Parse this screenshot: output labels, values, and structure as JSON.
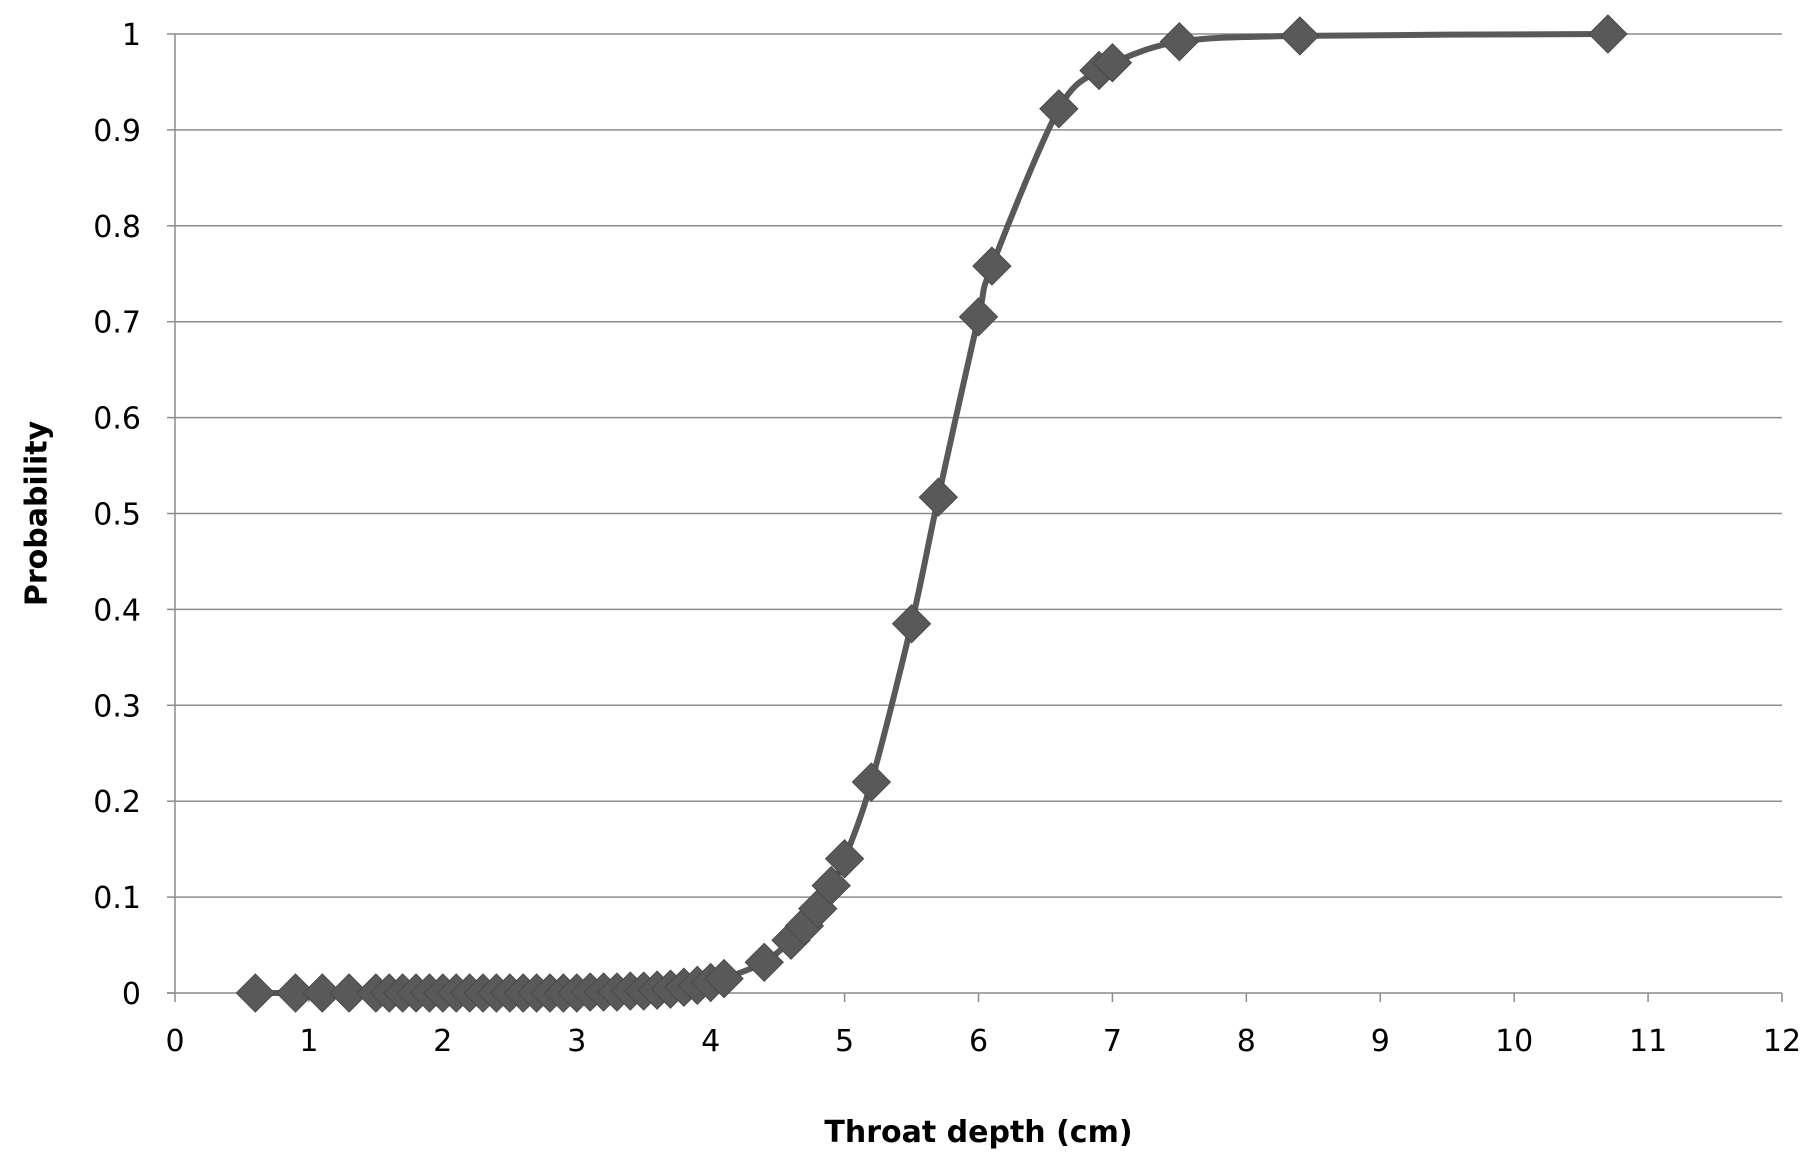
{
  "chart_data": {
    "type": "line",
    "title": "",
    "xlabel": "Throat depth (cm)",
    "ylabel": "Probability",
    "xlim": [
      0,
      12
    ],
    "ylim": [
      0,
      1
    ],
    "xticks": [
      "0",
      "1",
      "2",
      "3",
      "4",
      "5",
      "6",
      "7",
      "8",
      "9",
      "10",
      "11",
      "12"
    ],
    "yticks": [
      "0",
      "0.1",
      "0.2",
      "0.3",
      "0.4",
      "0.5",
      "0.6",
      "0.7",
      "0.8",
      "0.9",
      "1"
    ],
    "grid": "horizontal",
    "legend": "none",
    "marker": "diamond",
    "series_color": "#595959",
    "series": [
      {
        "x": [
          0.6,
          0.9,
          1.1,
          1.3,
          1.5,
          1.6,
          1.7,
          1.8,
          1.9,
          2.0,
          2.1,
          2.2,
          2.3,
          2.4,
          2.5,
          2.6,
          2.7,
          2.8,
          2.9,
          3.0,
          3.1,
          3.2,
          3.3,
          3.4,
          3.5,
          3.6,
          3.7,
          3.8,
          3.9,
          4.0,
          4.1,
          4.4,
          4.6,
          4.7,
          4.8,
          4.9,
          5.0,
          5.2,
          5.5,
          5.7,
          6.0,
          6.1,
          6.6,
          6.9,
          7.0,
          7.5,
          8.4,
          10.7
        ],
        "y": [
          0.0,
          0.0,
          0.0,
          0.0,
          0.0,
          0.0,
          0.0,
          0.0,
          0.0,
          0.0,
          0.0,
          0.0,
          0.0,
          0.0,
          0.0,
          0.0,
          0.0,
          0.0,
          0.0,
          0.0,
          0.001,
          0.001,
          0.001,
          0.002,
          0.002,
          0.003,
          0.004,
          0.006,
          0.008,
          0.011,
          0.015,
          0.032,
          0.055,
          0.07,
          0.088,
          0.112,
          0.14,
          0.22,
          0.385,
          0.517,
          0.705,
          0.758,
          0.922,
          0.962,
          0.97,
          0.992,
          0.998,
          1.0
        ]
      }
    ]
  }
}
